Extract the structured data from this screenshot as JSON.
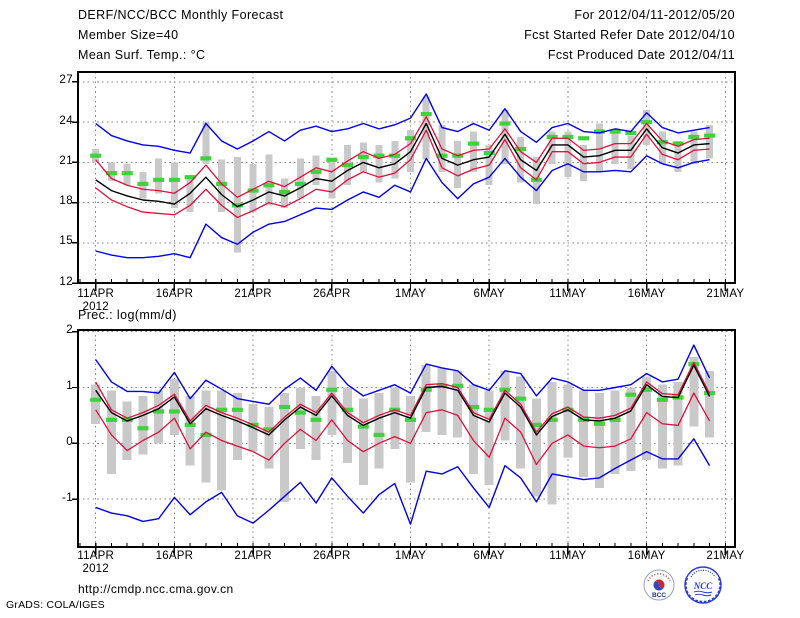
{
  "header": {
    "title": "DERF/NCC/BCC Monthly Forecast",
    "member_size": "Member Size=40",
    "for_period": "For 2012/04/11-2012/05/20",
    "refer_date": "Fcst Started Refer Date 2012/04/10",
    "produced_date": "Fcst Produced Date 2012/04/11"
  },
  "footer": {
    "url": "http://cmdp.ncc.cma.gov.cn",
    "credit": "GrADS: COLA/IGES",
    "bcc_label": "BCC",
    "ncc_label": "NCC"
  },
  "colors": {
    "envelope_blue": "#0000ee",
    "quartile_red": "#e0103c",
    "mean_black": "#000000",
    "obs_green": "#3fd23f",
    "spread_gray": "#c9c9c9",
    "grid_gray": "#8a8a8a",
    "frame_black": "#000000"
  },
  "chart_data": [
    {
      "type": "line",
      "title": "Mean Surf. Temp.: °C",
      "x_tick_labels": [
        "11APR",
        "16APR",
        "21APR",
        "26APR",
        "1MAY",
        "6MAY",
        "11MAY",
        "16MAY",
        "21MAY"
      ],
      "x_year_label": "2012",
      "y_tick_labels": [
        "27",
        "24",
        "21",
        "18",
        "15",
        "12"
      ],
      "y_ticks": [
        27,
        24,
        21,
        18,
        15,
        12
      ],
      "ylim": [
        12,
        27
      ],
      "days": 40,
      "series": {
        "blue_upper": [
          23.9,
          23.0,
          22.6,
          22.3,
          22.2,
          21.9,
          21.7,
          23.9,
          22.6,
          22.0,
          22.6,
          23.3,
          22.6,
          23.4,
          23.7,
          23.3,
          23.5,
          23.9,
          23.5,
          23.8,
          24.3,
          26.1,
          23.6,
          23.3,
          23.9,
          23.4,
          25.0,
          23.3,
          22.5,
          23.6,
          23.9,
          23.3,
          23.2,
          23.5,
          23.3,
          24.7,
          23.6,
          23.2,
          23.4,
          23.6
        ],
        "red_upper": [
          21.2,
          19.8,
          19.3,
          19.0,
          18.9,
          18.7,
          19.5,
          20.8,
          19.4,
          18.4,
          19.0,
          19.6,
          19.2,
          19.9,
          20.6,
          20.3,
          21.1,
          21.8,
          21.3,
          21.6,
          22.4,
          24.4,
          22.0,
          21.5,
          21.9,
          22.0,
          23.5,
          21.8,
          21.0,
          22.8,
          22.8,
          21.9,
          22.0,
          22.4,
          22.4,
          23.9,
          22.6,
          22.2,
          22.7,
          22.8
        ],
        "black_mean": [
          19.7,
          18.9,
          18.5,
          18.2,
          18.1,
          17.9,
          18.7,
          19.9,
          18.6,
          17.7,
          18.2,
          18.8,
          18.5,
          19.1,
          19.8,
          19.6,
          20.4,
          21.0,
          20.6,
          20.9,
          21.8,
          23.9,
          21.3,
          20.8,
          21.2,
          21.4,
          23.1,
          21.2,
          20.4,
          22.3,
          22.3,
          21.4,
          21.5,
          21.9,
          21.9,
          23.5,
          22.1,
          21.7,
          22.3,
          22.4
        ],
        "red_lower": [
          19.1,
          18.2,
          17.7,
          17.3,
          17.2,
          17.1,
          17.8,
          19.0,
          17.8,
          16.9,
          17.4,
          18.0,
          17.7,
          18.3,
          19.0,
          18.8,
          19.7,
          20.3,
          19.9,
          20.2,
          21.2,
          23.4,
          20.6,
          20.0,
          20.5,
          20.8,
          22.7,
          20.6,
          19.7,
          21.8,
          21.8,
          20.9,
          21.0,
          21.4,
          21.4,
          23.1,
          21.6,
          21.2,
          21.9,
          22.0
        ],
        "blue_lower": [
          14.4,
          14.1,
          13.9,
          13.9,
          14.0,
          14.2,
          13.9,
          16.4,
          15.4,
          14.9,
          15.8,
          16.4,
          16.6,
          17.1,
          17.6,
          17.5,
          18.2,
          18.8,
          18.4,
          19.3,
          18.8,
          21.3,
          19.5,
          18.3,
          19.4,
          19.9,
          21.3,
          19.9,
          18.9,
          20.4,
          20.9,
          20.3,
          20.3,
          20.4,
          20.3,
          21.5,
          20.9,
          20.6,
          21.0,
          21.2
        ],
        "green_dash": [
          21.5,
          20.2,
          20.2,
          19.4,
          19.7,
          19.7,
          19.9,
          21.3,
          19.4,
          17.8,
          18.9,
          19.3,
          18.8,
          19.4,
          20.3,
          21.2,
          20.8,
          21.4,
          21.5,
          21.5,
          22.8,
          24.6,
          21.5,
          21.5,
          22.4,
          21.7,
          23.9,
          22.0,
          19.7,
          22.9,
          22.9,
          22.8,
          23.3,
          23.3,
          23.2,
          24.0,
          22.5,
          22.4,
          22.9,
          23.0
        ]
      },
      "bars": {
        "low": [
          21.0,
          19.6,
          19.3,
          18.3,
          18.7,
          17.6,
          17.3,
          20.9,
          17.3,
          14.3,
          17.3,
          17.8,
          17.6,
          18.3,
          19.3,
          18.3,
          19.3,
          20.3,
          19.5,
          19.8,
          20.3,
          21.2,
          20.3,
          19.1,
          20.3,
          19.3,
          20.9,
          19.5,
          17.9,
          20.9,
          19.9,
          19.6,
          20.3,
          20.9,
          20.5,
          22.3,
          20.9,
          20.3,
          20.9,
          21.3
        ],
        "high": [
          22.0,
          21.0,
          20.9,
          20.3,
          21.3,
          21.0,
          20.0,
          24.0,
          21.2,
          21.4,
          20.9,
          21.6,
          19.8,
          21.3,
          21.5,
          21.2,
          22.3,
          22.5,
          22.3,
          22.6,
          23.4,
          25.9,
          23.8,
          22.6,
          23.3,
          22.3,
          24.9,
          22.9,
          21.4,
          23.3,
          23.3,
          22.3,
          23.9,
          23.3,
          23.0,
          24.9,
          23.3,
          22.6,
          23.3,
          23.8
        ]
      }
    },
    {
      "type": "line",
      "title": "Prec.: log(mm/d)",
      "x_tick_labels": [
        "11APR",
        "16APR",
        "21APR",
        "26APR",
        "1MAY",
        "6MAY",
        "11MAY",
        "16MAY",
        "21MAY"
      ],
      "x_year_label": "2012",
      "y_tick_labels": [
        "2",
        "1",
        "0",
        "-1"
      ],
      "y_ticks": [
        2,
        1,
        0,
        -1
      ],
      "ylim": [
        -1.9,
        2
      ],
      "days": 40,
      "series": {
        "blue_upper": [
          1.5,
          1.1,
          0.93,
          0.93,
          0.9,
          1.27,
          0.8,
          1.13,
          0.97,
          0.8,
          0.75,
          0.7,
          0.97,
          1.17,
          0.95,
          1.38,
          1.05,
          0.85,
          0.95,
          1.05,
          0.9,
          1.42,
          1.35,
          1.3,
          1.05,
          0.95,
          1.3,
          1.25,
          0.85,
          1.17,
          1.1,
          0.95,
          0.95,
          1.0,
          1.05,
          1.25,
          1.1,
          1.15,
          1.76,
          1.17
        ],
        "red_upper": [
          1.1,
          0.6,
          0.45,
          0.55,
          0.68,
          0.88,
          0.4,
          0.68,
          0.55,
          0.45,
          0.33,
          0.2,
          0.47,
          0.7,
          0.55,
          0.9,
          0.55,
          0.37,
          0.5,
          0.6,
          0.5,
          1.05,
          1.07,
          1.0,
          0.55,
          0.43,
          0.95,
          0.7,
          0.2,
          0.53,
          0.65,
          0.47,
          0.45,
          0.5,
          0.63,
          1.1,
          0.89,
          0.87,
          1.45,
          0.89
        ],
        "black_mean": [
          0.95,
          0.55,
          0.4,
          0.5,
          0.62,
          0.83,
          0.35,
          0.62,
          0.5,
          0.4,
          0.28,
          0.15,
          0.42,
          0.65,
          0.5,
          0.85,
          0.5,
          0.32,
          0.45,
          0.55,
          0.45,
          1.0,
          1.02,
          0.95,
          0.5,
          0.38,
          0.9,
          0.65,
          0.15,
          0.48,
          0.6,
          0.42,
          0.4,
          0.45,
          0.58,
          1.05,
          0.84,
          0.82,
          1.4,
          0.84
        ],
        "red_lower": [
          0.6,
          0.15,
          -0.13,
          0.05,
          0.2,
          0.45,
          -0.1,
          0.2,
          0.05,
          -0.05,
          -0.15,
          -0.3,
          0.0,
          0.25,
          0.05,
          0.42,
          0.05,
          -0.15,
          0.0,
          0.12,
          0.0,
          0.55,
          0.6,
          0.5,
          0.05,
          -0.25,
          0.45,
          0.2,
          -0.38,
          0.0,
          0.15,
          -0.05,
          -0.08,
          -0.05,
          0.08,
          0.55,
          0.35,
          0.32,
          0.9,
          0.4
        ],
        "blue_lower": [
          -1.15,
          -1.25,
          -1.3,
          -1.4,
          -1.35,
          -0.97,
          -1.28,
          -1.05,
          -0.88,
          -1.3,
          -1.43,
          -1.2,
          -0.95,
          -0.7,
          -1.07,
          -0.62,
          -0.95,
          -1.25,
          -0.92,
          -0.72,
          -1.45,
          -0.5,
          -0.55,
          -0.42,
          -0.8,
          -1.15,
          -0.4,
          -0.62,
          -1.05,
          -0.55,
          -0.6,
          -0.65,
          -0.62,
          -0.45,
          -0.3,
          -0.15,
          -0.28,
          -0.28,
          0.08,
          -0.4
        ],
        "green_dash": [
          0.78,
          0.42,
          0.42,
          0.27,
          0.57,
          0.57,
          0.33,
          0.15,
          0.6,
          0.6,
          0.33,
          0.25,
          0.65,
          0.55,
          0.42,
          0.96,
          0.6,
          0.3,
          0.15,
          0.6,
          0.42,
          0.96,
          1.03,
          1.03,
          0.65,
          0.6,
          0.96,
          0.8,
          0.33,
          0.42,
          0.6,
          0.42,
          0.35,
          0.42,
          0.87,
          0.96,
          0.78,
          0.82,
          1.42,
          0.9
        ]
      },
      "bars": {
        "low": [
          0.35,
          -0.55,
          -0.3,
          -0.2,
          0.0,
          0.15,
          -0.4,
          -0.7,
          -0.85,
          -0.3,
          -0.15,
          -0.45,
          -1.05,
          -0.1,
          -0.3,
          0.15,
          -0.35,
          -0.75,
          -0.45,
          -0.1,
          -0.7,
          0.2,
          0.15,
          0.1,
          -0.55,
          -0.75,
          0.05,
          -0.45,
          -0.95,
          -1.1,
          -0.25,
          -0.6,
          -0.8,
          -0.55,
          -0.5,
          -0.3,
          -0.45,
          -0.4,
          0.3,
          0.1
        ],
        "high": [
          1.05,
          0.95,
          0.75,
          0.85,
          0.95,
          1.15,
          0.85,
          0.95,
          0.95,
          0.9,
          0.7,
          0.65,
          0.9,
          1.0,
          0.85,
          1.3,
          1.0,
          0.8,
          0.9,
          1.0,
          0.85,
          1.4,
          1.35,
          1.3,
          1.05,
          0.95,
          1.3,
          1.2,
          0.8,
          1.1,
          1.05,
          0.95,
          0.9,
          0.95,
          1.0,
          1.2,
          1.05,
          1.1,
          1.55,
          1.3
        ]
      }
    }
  ]
}
